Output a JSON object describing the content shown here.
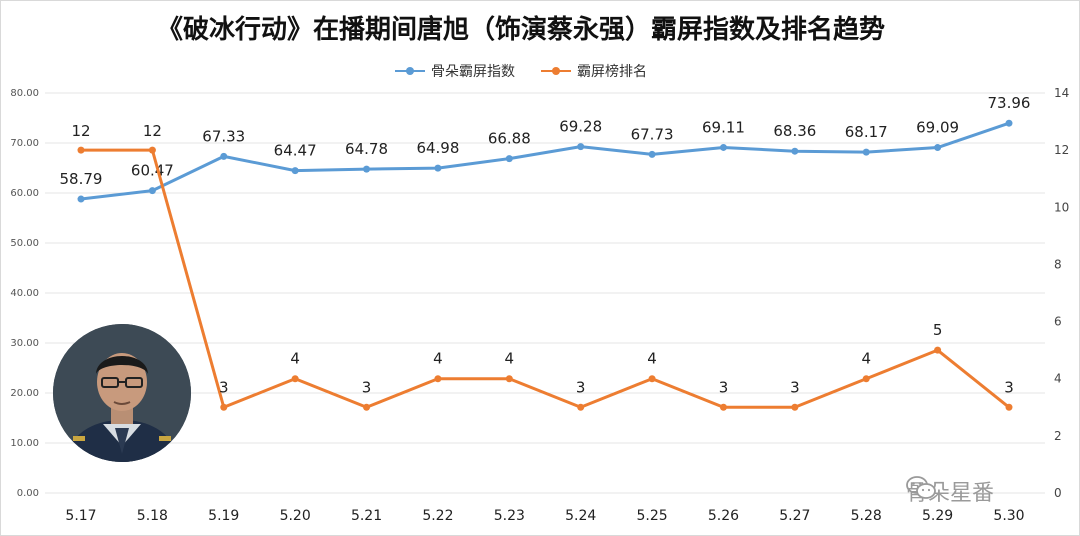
{
  "chart_data": {
    "type": "line",
    "title": "《破冰行动》在播期间唐旭（饰演蔡永强）霸屏指数及排名趋势",
    "categories": [
      "5.17",
      "5.18",
      "5.19",
      "5.20",
      "5.21",
      "5.22",
      "5.23",
      "5.24",
      "5.25",
      "5.26",
      "5.27",
      "5.28",
      "5.29",
      "5.30"
    ],
    "series": [
      {
        "name": "骨朵霸屏指数",
        "axis": "left",
        "color": "#5b9bd5",
        "values": [
          58.79,
          60.47,
          67.33,
          64.47,
          64.78,
          64.98,
          66.88,
          69.28,
          67.73,
          69.11,
          68.36,
          68.17,
          69.09,
          73.96
        ],
        "labels": [
          "58.79",
          "60.47",
          "67.33",
          "64.47",
          "64.78",
          "64.98",
          "66.88",
          "69.28",
          "67.73",
          "69.11",
          "68.36",
          "68.17",
          "69.09",
          "73.96"
        ]
      },
      {
        "name": "霸屏榜排名",
        "axis": "right",
        "color": "#ed7d31",
        "values": [
          12,
          12,
          3,
          4,
          3,
          4,
          4,
          3,
          4,
          3,
          3,
          4,
          5,
          3
        ],
        "labels": [
          "12",
          "12",
          "3",
          "4",
          "3",
          "4",
          "4",
          "3",
          "4",
          "3",
          "3",
          "4",
          "5",
          "3"
        ]
      }
    ],
    "y_left": {
      "min": 0,
      "max": 80,
      "ticks": [
        "0.00",
        "10.00",
        "20.00",
        "30.00",
        "40.00",
        "50.00",
        "60.00",
        "70.00",
        "80.00"
      ]
    },
    "y_right": {
      "min": 0,
      "max": 14,
      "ticks": [
        "0",
        "2",
        "4",
        "6",
        "8",
        "10",
        "12",
        "14"
      ]
    },
    "grid": true,
    "legend_position": "top-center"
  },
  "watermark": {
    "text": "骨朵星番",
    "icon": "wechat-icon"
  },
  "avatar": {
    "icon": "person-portrait"
  }
}
